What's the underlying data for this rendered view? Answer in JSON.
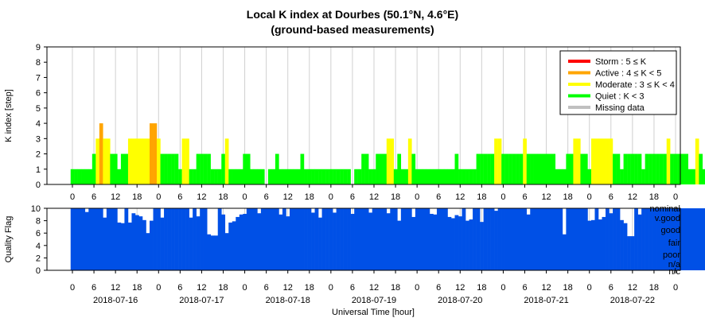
{
  "chart_data": [
    {
      "type": "bar",
      "title": "Local K index at Dourbes (50.1°N, 4.6°E)",
      "subtitle": "(ground-based measurements)",
      "ylabel": "K index [step]",
      "ylim": [
        0,
        9
      ],
      "yticks": [
        "0",
        "1",
        "2",
        "3",
        "4",
        "5",
        "6",
        "7",
        "8",
        "9"
      ],
      "xticks": [
        "0",
        "6",
        "12",
        "18",
        "0",
        "6",
        "12",
        "18",
        "0",
        "6",
        "12",
        "18",
        "0",
        "6",
        "12",
        "18",
        "0",
        "6",
        "12",
        "18",
        "0",
        "6",
        "12",
        "18",
        "0",
        "6",
        "12",
        "18",
        "0"
      ],
      "grid": true,
      "legend_position": "top-right",
      "legend": [
        {
          "label": "Storm : 5 ≤ K",
          "color": "#ff0000"
        },
        {
          "label": "Active : 4 ≤ K < 5",
          "color": "#ffa500"
        },
        {
          "label": "Moderate : 3 ≤ K < 4",
          "color": "#ffff00"
        },
        {
          "label": "Quiet : K < 3",
          "color": "#00ff00"
        },
        {
          "label": "Missing data",
          "color": "#c0c0c0"
        }
      ],
      "colors": {
        "quiet": "#00ff00",
        "moderate": "#ffff00",
        "active": "#ffa500",
        "storm": "#ff0000",
        "missing": "#c0c0c0"
      },
      "interval_hours": 1,
      "values": [
        1,
        1,
        1,
        1,
        1,
        1,
        2,
        3,
        4,
        3,
        3,
        2,
        2,
        1,
        2,
        2,
        3,
        3,
        3,
        3,
        3,
        3,
        4,
        4,
        3,
        2,
        2,
        2,
        2,
        2,
        1,
        3,
        3,
        1,
        1,
        2,
        2,
        2,
        2,
        1,
        1,
        1,
        2,
        3,
        1,
        1,
        1,
        1,
        2,
        2,
        1,
        1,
        1,
        1,
        0,
        1,
        1,
        2,
        1,
        1,
        1,
        1,
        1,
        1,
        2,
        1,
        1,
        1,
        1,
        1,
        1,
        1,
        1,
        1,
        1,
        1,
        1,
        1,
        0,
        1,
        1,
        2,
        2,
        1,
        1,
        2,
        2,
        2,
        3,
        3,
        1,
        2,
        1,
        1,
        3,
        2,
        1,
        1,
        1,
        1,
        1,
        1,
        1,
        1,
        1,
        1,
        1,
        2,
        1,
        1,
        1,
        1,
        1,
        2,
        2,
        2,
        2,
        2,
        3,
        3,
        2,
        2,
        2,
        2,
        2,
        2,
        3,
        2,
        2,
        2,
        2,
        2,
        2,
        2,
        2,
        1,
        1,
        1,
        2,
        2,
        3,
        3,
        2,
        2,
        1,
        3,
        3,
        3,
        3,
        3,
        3,
        2,
        2,
        1,
        2,
        2,
        2,
        2,
        2,
        1,
        2,
        2,
        2,
        2,
        2,
        2,
        3,
        2,
        2,
        2,
        2,
        2,
        1,
        1,
        3,
        2,
        1,
        1,
        1,
        1,
        1,
        1,
        2,
        1,
        1,
        1,
        1,
        1
      ],
      "date_labels": [
        "2018-07-16",
        "2018-07-17",
        "2018-07-18",
        "2018-07-19",
        "2018-07-20",
        "2018-07-21",
        "2018-07-22"
      ]
    },
    {
      "type": "bar",
      "ylabel": "Quality Flag",
      "xlabel": "Universal Time [hour]",
      "ylim": [
        0,
        10
      ],
      "yticks": [
        "0",
        "2",
        "4",
        "6",
        "8",
        "10"
      ],
      "xticks": [
        "0",
        "6",
        "12",
        "18",
        "0",
        "6",
        "12",
        "18",
        "0",
        "6",
        "12",
        "18",
        "0",
        "6",
        "12",
        "18",
        "0",
        "6",
        "12",
        "18",
        "0",
        "6",
        "12",
        "18",
        "0",
        "6",
        "12",
        "18",
        "0"
      ],
      "date_labels": [
        "2018-07-16",
        "2018-07-17",
        "2018-07-18",
        "2018-07-19",
        "2018-07-20",
        "2018-07-21",
        "2018-07-22"
      ],
      "levels": [
        "nominal",
        "v.good",
        "good",
        "fair",
        "poor",
        "n/a",
        "n/c"
      ],
      "color": "#0050e6",
      "values": [
        10,
        10,
        10,
        10,
        10,
        10,
        10,
        10,
        10,
        10,
        10,
        10,
        10,
        10,
        10,
        10,
        10,
        10,
        10,
        10,
        10,
        10,
        10,
        10,
        10,
        10,
        10,
        10,
        10,
        10,
        10,
        10,
        10,
        10,
        10,
        10,
        10,
        10,
        10,
        10,
        10,
        10,
        10,
        10,
        10,
        10,
        10,
        10,
        10,
        10,
        10,
        10,
        10,
        10,
        10,
        10,
        10,
        10,
        10,
        10,
        10,
        10,
        10,
        10,
        10,
        10,
        10,
        10,
        10,
        10,
        10,
        10,
        10,
        10,
        10,
        10,
        10,
        10,
        10,
        10,
        10,
        10,
        10,
        10,
        10,
        10,
        10,
        10,
        10,
        10,
        10,
        10,
        10,
        10,
        10,
        10,
        10,
        10,
        10,
        10,
        10,
        10,
        10,
        10,
        10,
        10,
        10,
        10,
        10,
        10,
        10,
        10,
        10,
        10,
        10,
        10,
        10,
        10,
        10,
        10,
        10,
        10,
        10,
        10,
        10,
        10,
        10,
        10,
        10,
        10,
        10,
        10,
        10,
        10,
        10,
        10,
        10,
        10,
        10,
        10,
        10,
        10,
        10,
        10,
        10,
        10,
        10,
        10,
        10,
        10,
        10,
        10,
        10,
        10,
        10,
        10,
        10,
        10,
        10,
        10,
        10,
        10,
        10,
        10,
        10,
        10,
        10,
        10,
        10,
        10,
        10,
        10,
        10,
        10,
        10,
        10,
        10,
        10,
        10,
        10,
        10,
        10,
        10,
        10,
        10,
        10,
        10,
        10
      ],
      "dips": [
        [
          4,
          9.4
        ],
        [
          9,
          8.5
        ],
        [
          13,
          7.7
        ],
        [
          14,
          7.6
        ],
        [
          16,
          7.7
        ],
        [
          17,
          9.2
        ],
        [
          18,
          8.9
        ],
        [
          19,
          8.7
        ],
        [
          20,
          8.1
        ],
        [
          21,
          6.0
        ],
        [
          22,
          8.0
        ],
        [
          25,
          8.5
        ],
        [
          33,
          8.5
        ],
        [
          35,
          8.7
        ],
        [
          38,
          5.8
        ],
        [
          39,
          5.6
        ],
        [
          40,
          5.6
        ],
        [
          42,
          9.0
        ],
        [
          43,
          6.0
        ],
        [
          44,
          7.7
        ],
        [
          45,
          7.9
        ],
        [
          46,
          8.6
        ],
        [
          47,
          9.0
        ],
        [
          48,
          9.1
        ],
        [
          52,
          9.2
        ],
        [
          58,
          9.0
        ],
        [
          60,
          8.7
        ],
        [
          67,
          9.3
        ],
        [
          69,
          8.5
        ],
        [
          73,
          9.3
        ],
        [
          78,
          9.1
        ],
        [
          83,
          9.3
        ],
        [
          88,
          9.2
        ],
        [
          91,
          8.0
        ],
        [
          95,
          8.6
        ],
        [
          100,
          9.1
        ],
        [
          101,
          9.0
        ],
        [
          105,
          8.6
        ],
        [
          106,
          8.4
        ],
        [
          107,
          8.9
        ],
        [
          108,
          8.7
        ],
        [
          110,
          8.0
        ],
        [
          111,
          8.2
        ],
        [
          114,
          7.8
        ],
        [
          118,
          9.6
        ],
        [
          127,
          9.0
        ],
        [
          137,
          5.8
        ],
        [
          144,
          8.0
        ],
        [
          145,
          8.1
        ],
        [
          147,
          8.2
        ],
        [
          148,
          8.6
        ],
        [
          150,
          9.2
        ],
        [
          153,
          8.1
        ],
        [
          154,
          7.6
        ],
        [
          155,
          5.5
        ],
        [
          156,
          5.5
        ],
        [
          158,
          9.0
        ],
        [
          177,
          9.3
        ],
        [
          178,
          8.8
        ],
        [
          183,
          8.5
        ],
        [
          187,
          9.4
        ],
        [
          191,
          9.0
        ],
        [
          194,
          9.4
        ],
        [
          196,
          9.2
        ],
        [
          198,
          9.1
        ],
        [
          199,
          8.8
        ],
        [
          201,
          6.0
        ],
        [
          202,
          5.8
        ],
        [
          206,
          9.2
        ],
        [
          207,
          9.1
        ],
        [
          209,
          9.6
        ]
      ]
    }
  ]
}
